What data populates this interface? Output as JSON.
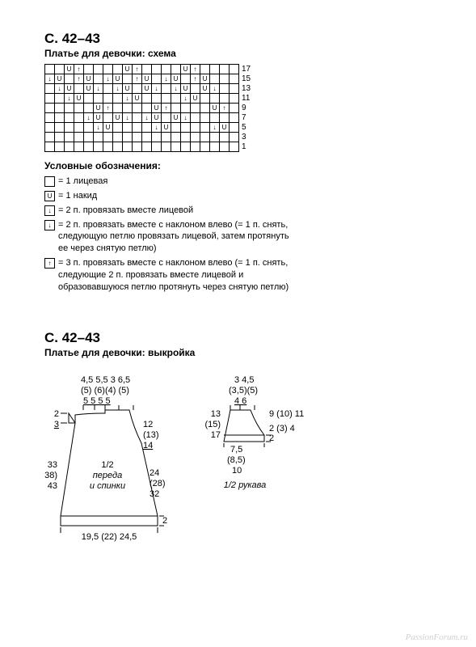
{
  "section1": {
    "heading": "С. 42–43",
    "subtitle": "Платье для девочки: схема"
  },
  "chart": {
    "cols": 20,
    "row_labels": [
      "17",
      "15",
      "13",
      "11",
      "9",
      "7",
      "5",
      "3",
      "1"
    ],
    "symbol_rows": [
      {
        "row": 0,
        "symbols": {
          "2": "U",
          "3": "↑",
          "8": "U",
          "9": "↑",
          "14": "U",
          "15": "↑"
        }
      },
      {
        "row": 1,
        "symbols": {
          "0": "↓",
          "1": "U",
          "3": "↑",
          "4": "U",
          "6": "↓",
          "7": "U",
          "9": "↑",
          "10": "U",
          "12": "↓",
          "13": "U",
          "15": "↑",
          "16": "U"
        }
      },
      {
        "row": 2,
        "symbols": {
          "1": "↓",
          "2": "U",
          "4": "U",
          "5": "↓",
          "7": "↓",
          "8": "U",
          "10": "U",
          "11": "↓",
          "13": "↓",
          "14": "U",
          "16": "U",
          "17": "↓"
        }
      },
      {
        "row": 3,
        "symbols": {
          "2": "↓",
          "3": "U",
          "8": "↓",
          "9": "U",
          "14": "↓",
          "15": "U"
        }
      },
      {
        "row": 4,
        "symbols": {
          "5": "U",
          "6": "↑",
          "11": "U",
          "12": "↑",
          "17": "U",
          "18": "↑"
        }
      },
      {
        "row": 5,
        "symbols": {
          "4": "↓",
          "5": "U",
          "7": "U",
          "8": "↓",
          "10": "↓",
          "11": "U",
          "13": "U",
          "14": "↓"
        }
      },
      {
        "row": 6,
        "symbols": {
          "5": "↓",
          "6": "U",
          "11": "↓",
          "12": "U",
          "17": "↓",
          "18": "U"
        }
      }
    ]
  },
  "legend": {
    "title": "Условные обозначения:",
    "items": [
      {
        "sym": "",
        "text": "= 1 лицевая"
      },
      {
        "sym": "U",
        "text": "= 1 накид"
      },
      {
        "sym": "↓",
        "text": "= 2 п. провязать вместе лицевой"
      },
      {
        "sym": "↓",
        "text": "= 2 п. провязать вместе с наклоном влево (= 1 п. снять, следующую петлю провязать лицевой, затем протянуть ее через снятую петлю)"
      },
      {
        "sym": "↑",
        "text": "= 3 п. провязать вместе с наклоном влево (= 1 п. снять, следующие 2 п. провязать вместе лицевой и образовавшуюся петлю протянуть через снятую петлю)"
      }
    ]
  },
  "section2": {
    "heading": "С. 42–43",
    "subtitle": "Платье для девочки: выкройка"
  },
  "pattern": {
    "body": {
      "top_row1": "4,5 5,5 3  6,5",
      "top_row2": "(5) (6)(4) (5)",
      "top_row3": "  5  5  5   5",
      "left_top_a": "2",
      "left_top_b": "3",
      "right_top_a": "12",
      "right_top_b": "(13)",
      "right_top_c": "14",
      "left_mid_a": "33",
      "left_mid_b": "(38)",
      "left_mid_c": "43",
      "center_a": "1/2",
      "center_b": "переда",
      "center_c": "и спинки",
      "right_mid_a": "24",
      "right_mid_b": "(28)",
      "right_mid_c": "32",
      "bottom_right": "2",
      "bottom": "19,5 (22) 24,5"
    },
    "sleeve": {
      "top_row1": "3  4,5",
      "top_row2": "(3,5)(5)",
      "top_row3": "4  6",
      "left_a": "13",
      "left_b": "(15)",
      "left_c": "17",
      "right_a": "9 (10) 11",
      "right_b": "2 (3) 4",
      "right_c": "2",
      "bot_left_a": "7,5",
      "bot_left_b": "(8,5)",
      "bot_left_c": "10",
      "label": "1/2 рукава"
    }
  },
  "watermark": "PassionForum.ru"
}
